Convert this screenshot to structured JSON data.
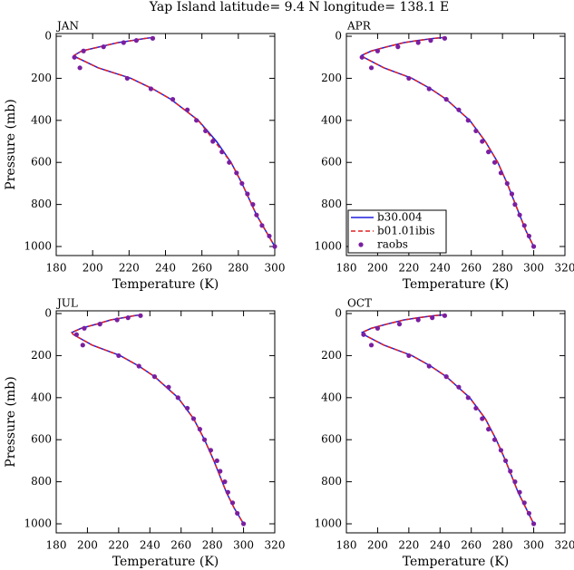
{
  "title": "Yap Island  latitude= 9.4 N longitude= 138.1 E",
  "chart_data": [
    {
      "type": "line",
      "label": "JAN",
      "xlabel": "Temperature (K)",
      "ylabel": "Pressure (mb)",
      "xlim": [
        180,
        300
      ],
      "xticks": [
        180,
        200,
        220,
        240,
        260,
        280,
        300
      ],
      "ylim": [
        1043,
        -13
      ],
      "yticks": [
        0,
        200,
        400,
        600,
        800,
        1000
      ],
      "series": [
        {
          "name": "b30.004",
          "color": "#1f1fdd",
          "style": "solid",
          "x": [
            234,
            229,
            222,
            214,
            204,
            194,
            190,
            191,
            203,
            221,
            233,
            243,
            258,
            268,
            276,
            282,
            290,
            295,
            300
          ],
          "y": [
            5,
            10,
            20,
            30,
            50,
            70,
            90,
            100,
            150,
            200,
            250,
            300,
            400,
            500,
            600,
            700,
            850,
            925,
            1000
          ]
        },
        {
          "name": "b01.01ibis",
          "color": "#e02020",
          "style": "dashed",
          "x": [
            234,
            229,
            222,
            214,
            204,
            194,
            190,
            191,
            203,
            221,
            233,
            243,
            258,
            267,
            276,
            282,
            290,
            295,
            300
          ],
          "y": [
            5,
            10,
            20,
            30,
            50,
            70,
            90,
            100,
            150,
            200,
            250,
            300,
            400,
            500,
            600,
            700,
            850,
            925,
            1000
          ]
        },
        {
          "name": "raobs",
          "color": "#7a1fa0",
          "style": "markers",
          "x": [
            233,
            224,
            217,
            206,
            195,
            190,
            193,
            219,
            232,
            244,
            252,
            257,
            262,
            266,
            271,
            275,
            279,
            282,
            285,
            288,
            290,
            293,
            297,
            300
          ],
          "y": [
            10,
            20,
            30,
            50,
            70,
            100,
            150,
            200,
            250,
            300,
            350,
            400,
            450,
            500,
            550,
            600,
            650,
            700,
            750,
            800,
            850,
            900,
            950,
            1000
          ]
        }
      ]
    },
    {
      "type": "line",
      "label": "APR",
      "xlabel": "Temperature (K)",
      "legend": "lower-left",
      "xlim": [
        180,
        320
      ],
      "xticks": [
        180,
        200,
        220,
        240,
        260,
        280,
        300,
        320
      ],
      "ylim": [
        1043,
        -13
      ],
      "yticks": [
        0,
        200,
        400,
        600,
        800,
        1000
      ],
      "series": [
        {
          "name": "b30.004",
          "color": "#1f1fdd",
          "style": "solid",
          "x": [
            244,
            236,
            226,
            217,
            206,
            196,
            190,
            191,
            204,
            222,
            234,
            244,
            259,
            269,
            277,
            283,
            291,
            295,
            300
          ],
          "y": [
            5,
            10,
            20,
            30,
            50,
            70,
            90,
            100,
            150,
            200,
            250,
            300,
            400,
            500,
            600,
            700,
            850,
            925,
            1000
          ]
        },
        {
          "name": "b01.01ibis",
          "color": "#e02020",
          "style": "dashed",
          "x": [
            244,
            236,
            226,
            217,
            206,
            196,
            190,
            191,
            204,
            222,
            234,
            244,
            259,
            269,
            277,
            283,
            291,
            295,
            300
          ],
          "y": [
            5,
            10,
            20,
            30,
            50,
            70,
            90,
            100,
            150,
            200,
            250,
            300,
            400,
            500,
            600,
            700,
            850,
            925,
            1000
          ]
        },
        {
          "name": "raobs",
          "color": "#7a1fa0",
          "style": "markers",
          "x": [
            243,
            234,
            226,
            213,
            200,
            190,
            196,
            220,
            233,
            244,
            252,
            258,
            263,
            267,
            271,
            275,
            279,
            283,
            286,
            288,
            291,
            294,
            297,
            300
          ],
          "y": [
            10,
            20,
            30,
            50,
            70,
            100,
            150,
            200,
            250,
            300,
            350,
            400,
            450,
            500,
            550,
            600,
            650,
            700,
            750,
            800,
            850,
            900,
            950,
            1000
          ]
        }
      ]
    },
    {
      "type": "line",
      "label": "JUL",
      "xlabel": "Temperature (K)",
      "ylabel": "Pressure (mb)",
      "xlim": [
        180,
        320
      ],
      "xticks": [
        180,
        200,
        220,
        240,
        260,
        280,
        300,
        320
      ],
      "ylim": [
        1043,
        -13
      ],
      "yticks": [
        0,
        200,
        400,
        600,
        800,
        1000
      ],
      "series": [
        {
          "name": "b30.004",
          "color": "#1f1fdd",
          "style": "solid",
          "x": [
            235,
            230,
            223,
            215,
            206,
            196,
            190,
            191,
            203,
            221,
            233,
            243,
            258,
            268,
            275,
            281,
            289,
            294,
            300
          ],
          "y": [
            5,
            10,
            20,
            30,
            50,
            70,
            90,
            100,
            150,
            200,
            250,
            300,
            400,
            500,
            600,
            700,
            850,
            925,
            1000
          ]
        },
        {
          "name": "b01.01ibis",
          "color": "#e02020",
          "style": "dashed",
          "x": [
            235,
            230,
            223,
            215,
            206,
            196,
            190,
            191,
            203,
            221,
            233,
            243,
            258,
            268,
            275,
            281,
            289,
            294,
            300
          ],
          "y": [
            5,
            10,
            20,
            30,
            50,
            70,
            90,
            100,
            150,
            200,
            250,
            300,
            400,
            500,
            600,
            700,
            850,
            925,
            1000
          ]
        },
        {
          "name": "raobs",
          "color": "#7a1fa0",
          "style": "markers",
          "x": [
            234,
            226,
            219,
            208,
            198,
            193,
            197,
            220,
            233,
            243,
            252,
            258,
            264,
            268,
            272,
            275,
            279,
            283,
            285,
            288,
            290,
            293,
            296,
            300
          ],
          "y": [
            10,
            20,
            30,
            50,
            70,
            100,
            150,
            200,
            250,
            300,
            350,
            400,
            450,
            500,
            550,
            600,
            650,
            700,
            750,
            800,
            850,
            900,
            950,
            1000
          ]
        }
      ]
    },
    {
      "type": "line",
      "label": "OCT",
      "xlabel": "Temperature (K)",
      "xlim": [
        180,
        320
      ],
      "xticks": [
        180,
        200,
        220,
        240,
        260,
        280,
        300,
        320
      ],
      "ylim": [
        1043,
        -13
      ],
      "yticks": [
        0,
        200,
        400,
        600,
        800,
        1000
      ],
      "series": [
        {
          "name": "b30.004",
          "color": "#1f1fdd",
          "style": "solid",
          "x": [
            244,
            236,
            226,
            217,
            206,
            196,
            190,
            191,
            204,
            222,
            234,
            244,
            259,
            269,
            276,
            282,
            290,
            295,
            300
          ],
          "y": [
            5,
            10,
            20,
            30,
            50,
            70,
            90,
            100,
            150,
            200,
            250,
            300,
            400,
            500,
            600,
            700,
            850,
            925,
            1000
          ]
        },
        {
          "name": "b01.01ibis",
          "color": "#e02020",
          "style": "dashed",
          "x": [
            244,
            236,
            226,
            217,
            206,
            196,
            190,
            191,
            204,
            222,
            234,
            244,
            259,
            269,
            276,
            282,
            290,
            295,
            300
          ],
          "y": [
            5,
            10,
            20,
            30,
            50,
            70,
            90,
            100,
            150,
            200,
            250,
            300,
            400,
            500,
            600,
            700,
            850,
            925,
            1000
          ]
        },
        {
          "name": "raobs",
          "color": "#7a1fa0",
          "style": "markers",
          "x": [
            243,
            235,
            226,
            214,
            200,
            191,
            196,
            220,
            233,
            244,
            252,
            258,
            263,
            267,
            271,
            275,
            279,
            282,
            285,
            288,
            291,
            294,
            297,
            300
          ],
          "y": [
            10,
            20,
            30,
            50,
            70,
            100,
            150,
            200,
            250,
            300,
            350,
            400,
            450,
            500,
            550,
            600,
            650,
            700,
            750,
            800,
            850,
            900,
            950,
            1000
          ]
        }
      ]
    }
  ]
}
